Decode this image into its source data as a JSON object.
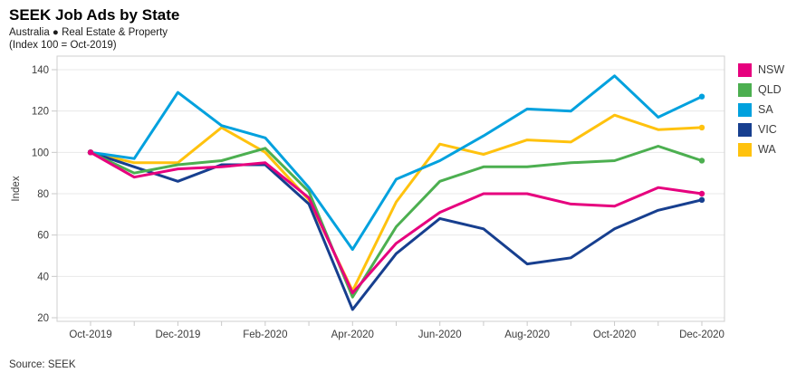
{
  "header": {
    "title": "SEEK Job Ads by State",
    "subtitle": "Australia ● Real Estate & Property",
    "index_note": "(Index 100 = Oct-2019)"
  },
  "source": "Source: SEEK",
  "chart_data": {
    "type": "line",
    "x": [
      "Oct-2019",
      "Nov-2019",
      "Dec-2019",
      "Jan-2020",
      "Feb-2020",
      "Mar-2020",
      "Apr-2020",
      "May-2020",
      "Jun-2020",
      "Jul-2020",
      "Aug-2020",
      "Sep-2020",
      "Oct-2020",
      "Nov-2020",
      "Dec-2020"
    ],
    "x_tick_labels": [
      "Oct-2019",
      "Dec-2019",
      "Feb-2020",
      "Apr-2020",
      "Jun-2020",
      "Aug-2020",
      "Oct-2020",
      "Dec-2020"
    ],
    "ylabel": "Index",
    "ylim": [
      20,
      140
    ],
    "yticks": [
      20,
      40,
      60,
      80,
      100,
      120,
      140
    ],
    "grid": "horizontal",
    "legend_position": "right",
    "series": [
      {
        "name": "NSW",
        "color": "#E6007E",
        "values": [
          100,
          88,
          92,
          93,
          95,
          78,
          32,
          56,
          71,
          80,
          80,
          75,
          74,
          83,
          80
        ]
      },
      {
        "name": "QLD",
        "color": "#4CAF50",
        "values": [
          100,
          90,
          94,
          96,
          102,
          81,
          30,
          64,
          86,
          93,
          93,
          95,
          96,
          103,
          96
        ]
      },
      {
        "name": "SA",
        "color": "#00A1DE",
        "values": [
          100,
          97,
          129,
          113,
          107,
          83,
          53,
          87,
          96,
          108,
          121,
          120,
          137,
          117,
          127
        ]
      },
      {
        "name": "VIC",
        "color": "#173F8F",
        "values": [
          100,
          93,
          86,
          94,
          94,
          75,
          24,
          51,
          68,
          63,
          46,
          49,
          63,
          72,
          77
        ]
      },
      {
        "name": "WA",
        "color": "#FFC20E",
        "values": [
          100,
          95,
          95,
          112,
          100,
          77,
          33,
          76,
          104,
          99,
          106,
          105,
          118,
          111,
          112
        ]
      }
    ]
  }
}
